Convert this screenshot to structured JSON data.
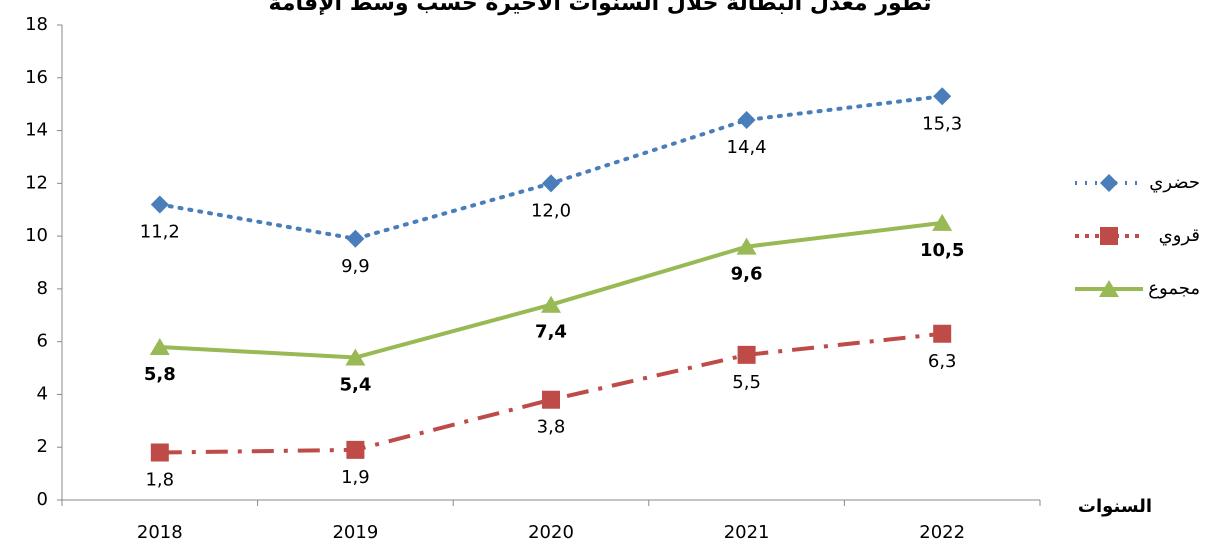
{
  "chart_data": {
    "type": "line",
    "title": "تطور معدل البطالة خلال السنوات الأخيرة حسب وسط الإقامة",
    "x_label": "السنوات",
    "categories": [
      "2018",
      "2019",
      "2020",
      "2021",
      "2022"
    ],
    "ylim": [
      0,
      18
    ],
    "yticks": [
      0,
      2,
      4,
      6,
      8,
      10,
      12,
      14,
      16,
      18
    ],
    "legend": "right",
    "series": [
      {
        "name": "حضري",
        "color": "#4a7ebb",
        "values": [
          11.2,
          9.9,
          12.0,
          14.4,
          15.3
        ],
        "value_labels": [
          "11,2",
          "9,9",
          "12,0",
          "14,4",
          "15,3"
        ]
      },
      {
        "name": "قروي",
        "color": "#be4b48",
        "values": [
          1.8,
          1.9,
          3.8,
          5.5,
          6.3
        ],
        "value_labels": [
          "1,8",
          "1,9",
          "3,8",
          "5,5",
          "6,3"
        ]
      },
      {
        "name": "مجموع",
        "color": "#98b954",
        "values": [
          5.8,
          5.4,
          7.4,
          9.6,
          10.5
        ],
        "value_labels": [
          "5,8",
          "5,4",
          "7,4",
          "9,6",
          "10,5"
        ]
      }
    ]
  }
}
